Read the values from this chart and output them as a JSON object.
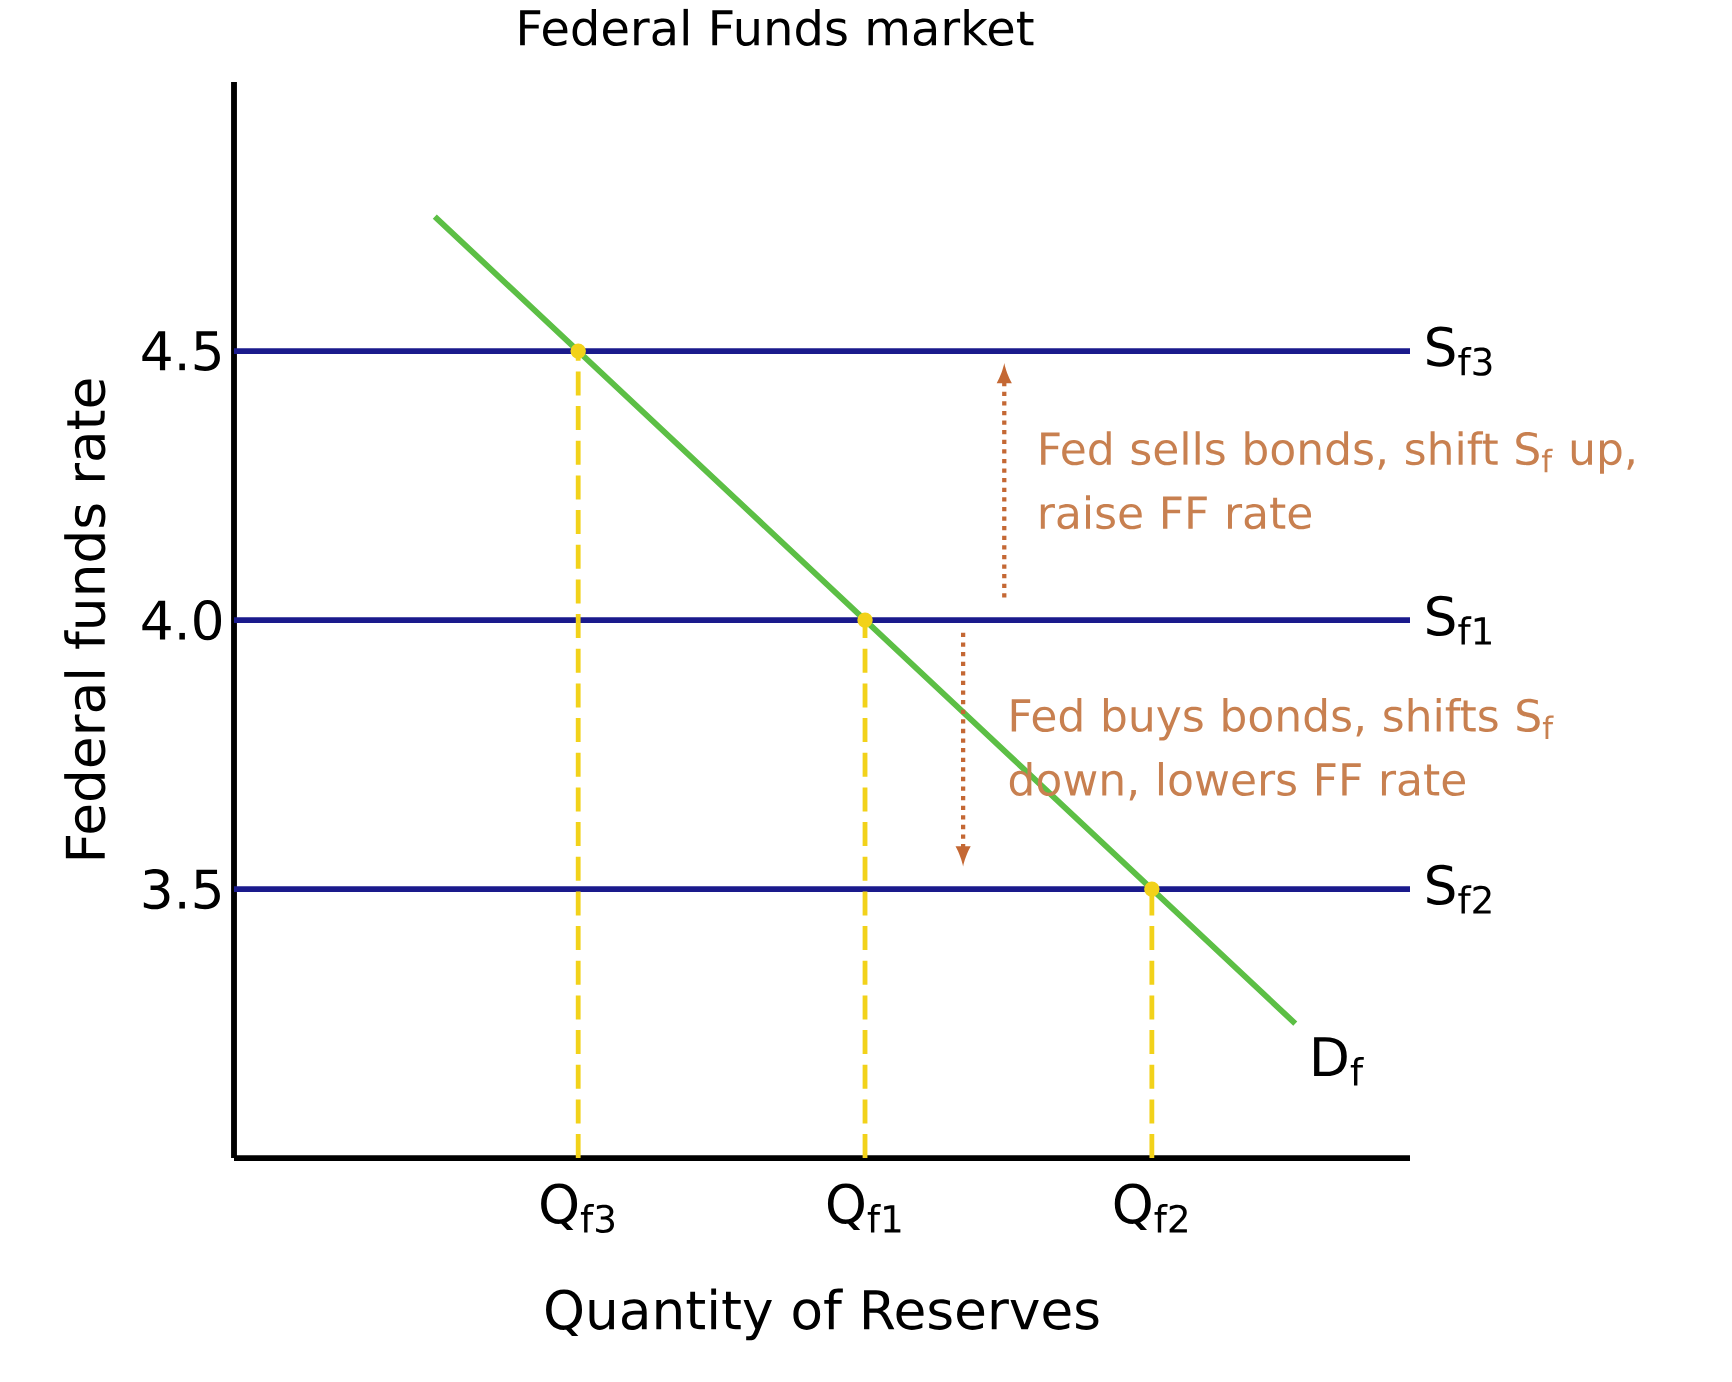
{
  "chart_data": {
    "type": "line",
    "title": "Federal Funds market",
    "xlabel": "Quantity of Reserves",
    "ylabel": "Federal funds rate",
    "categories": [
      null,
      null,
      "Q$_{f3}$",
      null,
      "Q$_{f1}$",
      null,
      "Q$_{f2}$",
      null,
      null
    ],
    "ylim": [
      3.0,
      5.0
    ],
    "yticks": [
      3.5,
      {
        "value": 4.0,
        "label": "4.0"
      },
      4.5
    ],
    "marker": "none",
    "series": [
      {
        "type": "lollipop",
        "color": "#f2d21a",
        "line_style": "dashed",
        "marker": "circle",
        "values": [
          null,
          null,
          4.5,
          null,
          4.0,
          null,
          3.5,
          null,
          null
        ]
      },
      {
        "name": "D$_{f}$",
        "color": "#5cbf45",
        "line_style": "solid",
        "values": [
          null,
          4.75,
          4.5,
          4.25,
          4.0,
          3.75,
          3.5,
          3.25,
          null
        ]
      }
    ],
    "ref_lines": [
      {
        "axis": "y",
        "value": 4.5,
        "label": "S$_{f3}$",
        "color": "#1a1a8c"
      },
      {
        "axis": "y",
        "value": 4.0,
        "label": "S$_{f1}$",
        "color": "#1a1a8c"
      },
      {
        "axis": "y",
        "value": 3.5,
        "label": "S$_{f2}$",
        "color": "#1a1a8c"
      }
    ],
    "annotations": [
      "Fed sells bonds, shift S$_{f}$ up, raise FF rate",
      "Fed buys bonds, shifts S$_{f}$ down, lowers FF rate"
    ]
  }
}
